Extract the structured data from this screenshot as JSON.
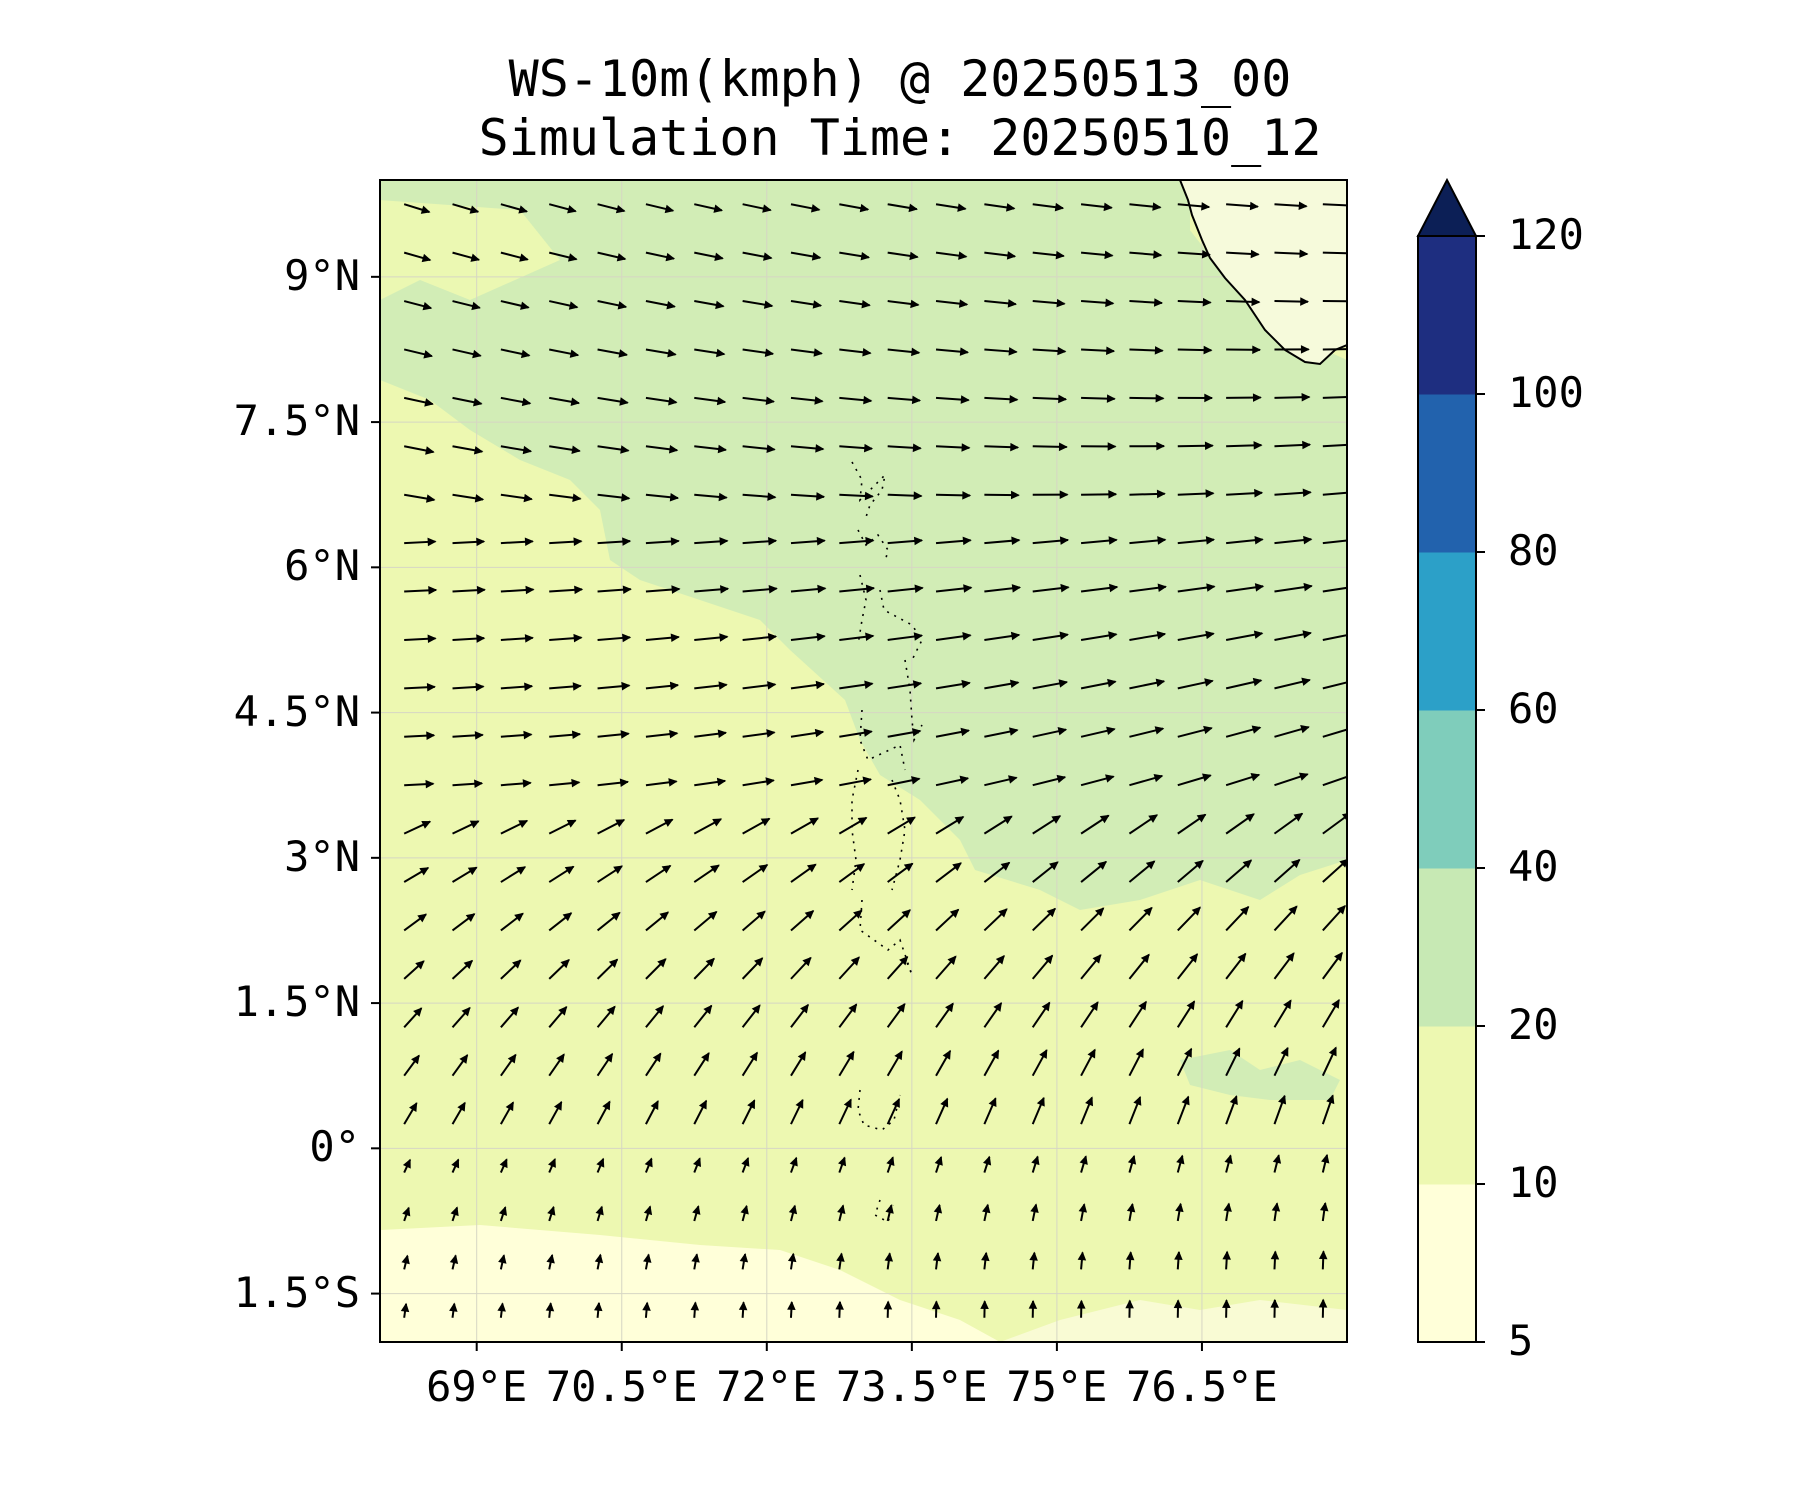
{
  "title": {
    "line1": "WS-10m(kmph) @ 20250513_00",
    "line2": "Simulation Time: 20250510_12"
  },
  "map": {
    "extent": {
      "lon_min": 68,
      "lon_max": 78,
      "lat_min": -2,
      "lat_max": 10
    },
    "lat_ticks": [
      {
        "value": 9,
        "label": "9°N"
      },
      {
        "value": 7.5,
        "label": "7.5°N"
      },
      {
        "value": 6,
        "label": "6°N"
      },
      {
        "value": 4.5,
        "label": "4.5°N"
      },
      {
        "value": 3,
        "label": "3°N"
      },
      {
        "value": 1.5,
        "label": "1.5°N"
      },
      {
        "value": 0,
        "label": "0°"
      },
      {
        "value": -1.5,
        "label": "1.5°S"
      }
    ],
    "lon_ticks": [
      {
        "value": 69,
        "label": "69°E"
      },
      {
        "value": 70.5,
        "label": "70.5°E"
      },
      {
        "value": 72,
        "label": "72°E"
      },
      {
        "value": 73.5,
        "label": "73.5°E"
      },
      {
        "value": 75,
        "label": "75°E"
      },
      {
        "value": 76.5,
        "label": "76.5°E"
      }
    ],
    "field_colors": {
      "5-10": "#ffffd9",
      "10-20": "#edf8b1",
      "20-40": "#d2edb6"
    }
  },
  "colorbar": {
    "levels": [
      5,
      10,
      20,
      40,
      60,
      80,
      100,
      120
    ],
    "labels": [
      "5",
      "10",
      "20",
      "40",
      "60",
      "80",
      "100",
      "120"
    ],
    "colors": [
      "#ffffd9",
      "#edf8b1",
      "#c7e9b4",
      "#7fcdbb",
      "#2ca0c8",
      "#2262ad",
      "#1e2e80"
    ],
    "extend_color": "#0c1f56"
  }
}
